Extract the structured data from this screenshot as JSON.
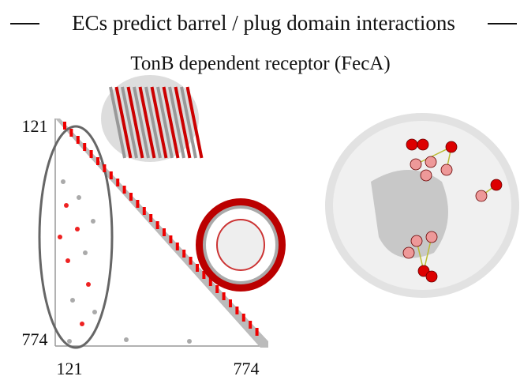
{
  "header": {
    "title": "ECs predict barrel / plug domain interactions",
    "subtitle": "TonB dependent receptor (FecA)"
  },
  "contact_map": {
    "y_labels": [
      "121",
      "774"
    ],
    "x_labels": [
      "121",
      "774"
    ]
  }
}
